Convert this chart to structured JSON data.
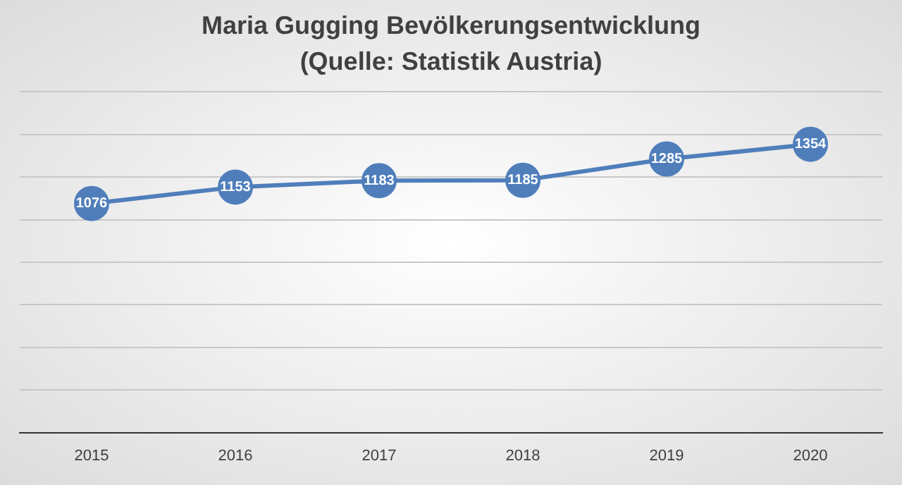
{
  "chart_data": {
    "type": "line",
    "title": "Maria Gugging Bevölkerungsentwicklung",
    "subtitle": "(Quelle: Statistik Austria)",
    "categories": [
      "2015",
      "2016",
      "2017",
      "2018",
      "2019",
      "2020"
    ],
    "series": [
      {
        "color": "#4f7ebb",
        "values": [
          1076,
          1153,
          1183,
          1185,
          1285,
          1354
        ]
      }
    ],
    "ylim": [
      0,
      1600
    ],
    "yticks": [
      {
        "value": 0,
        "label": null
      },
      {
        "value": 200,
        "label": null
      },
      {
        "value": 400,
        "label": null
      },
      {
        "value": 600,
        "label": null
      },
      {
        "value": 800,
        "label": null
      },
      {
        "value": 1000,
        "label": null
      },
      {
        "value": 1200,
        "label": null
      },
      {
        "value": 1400,
        "label": null
      },
      {
        "value": 1600,
        "label": null
      }
    ],
    "tick_labels": "x",
    "grid": "y",
    "legend": false,
    "marker": "circle",
    "data_labels": true
  }
}
